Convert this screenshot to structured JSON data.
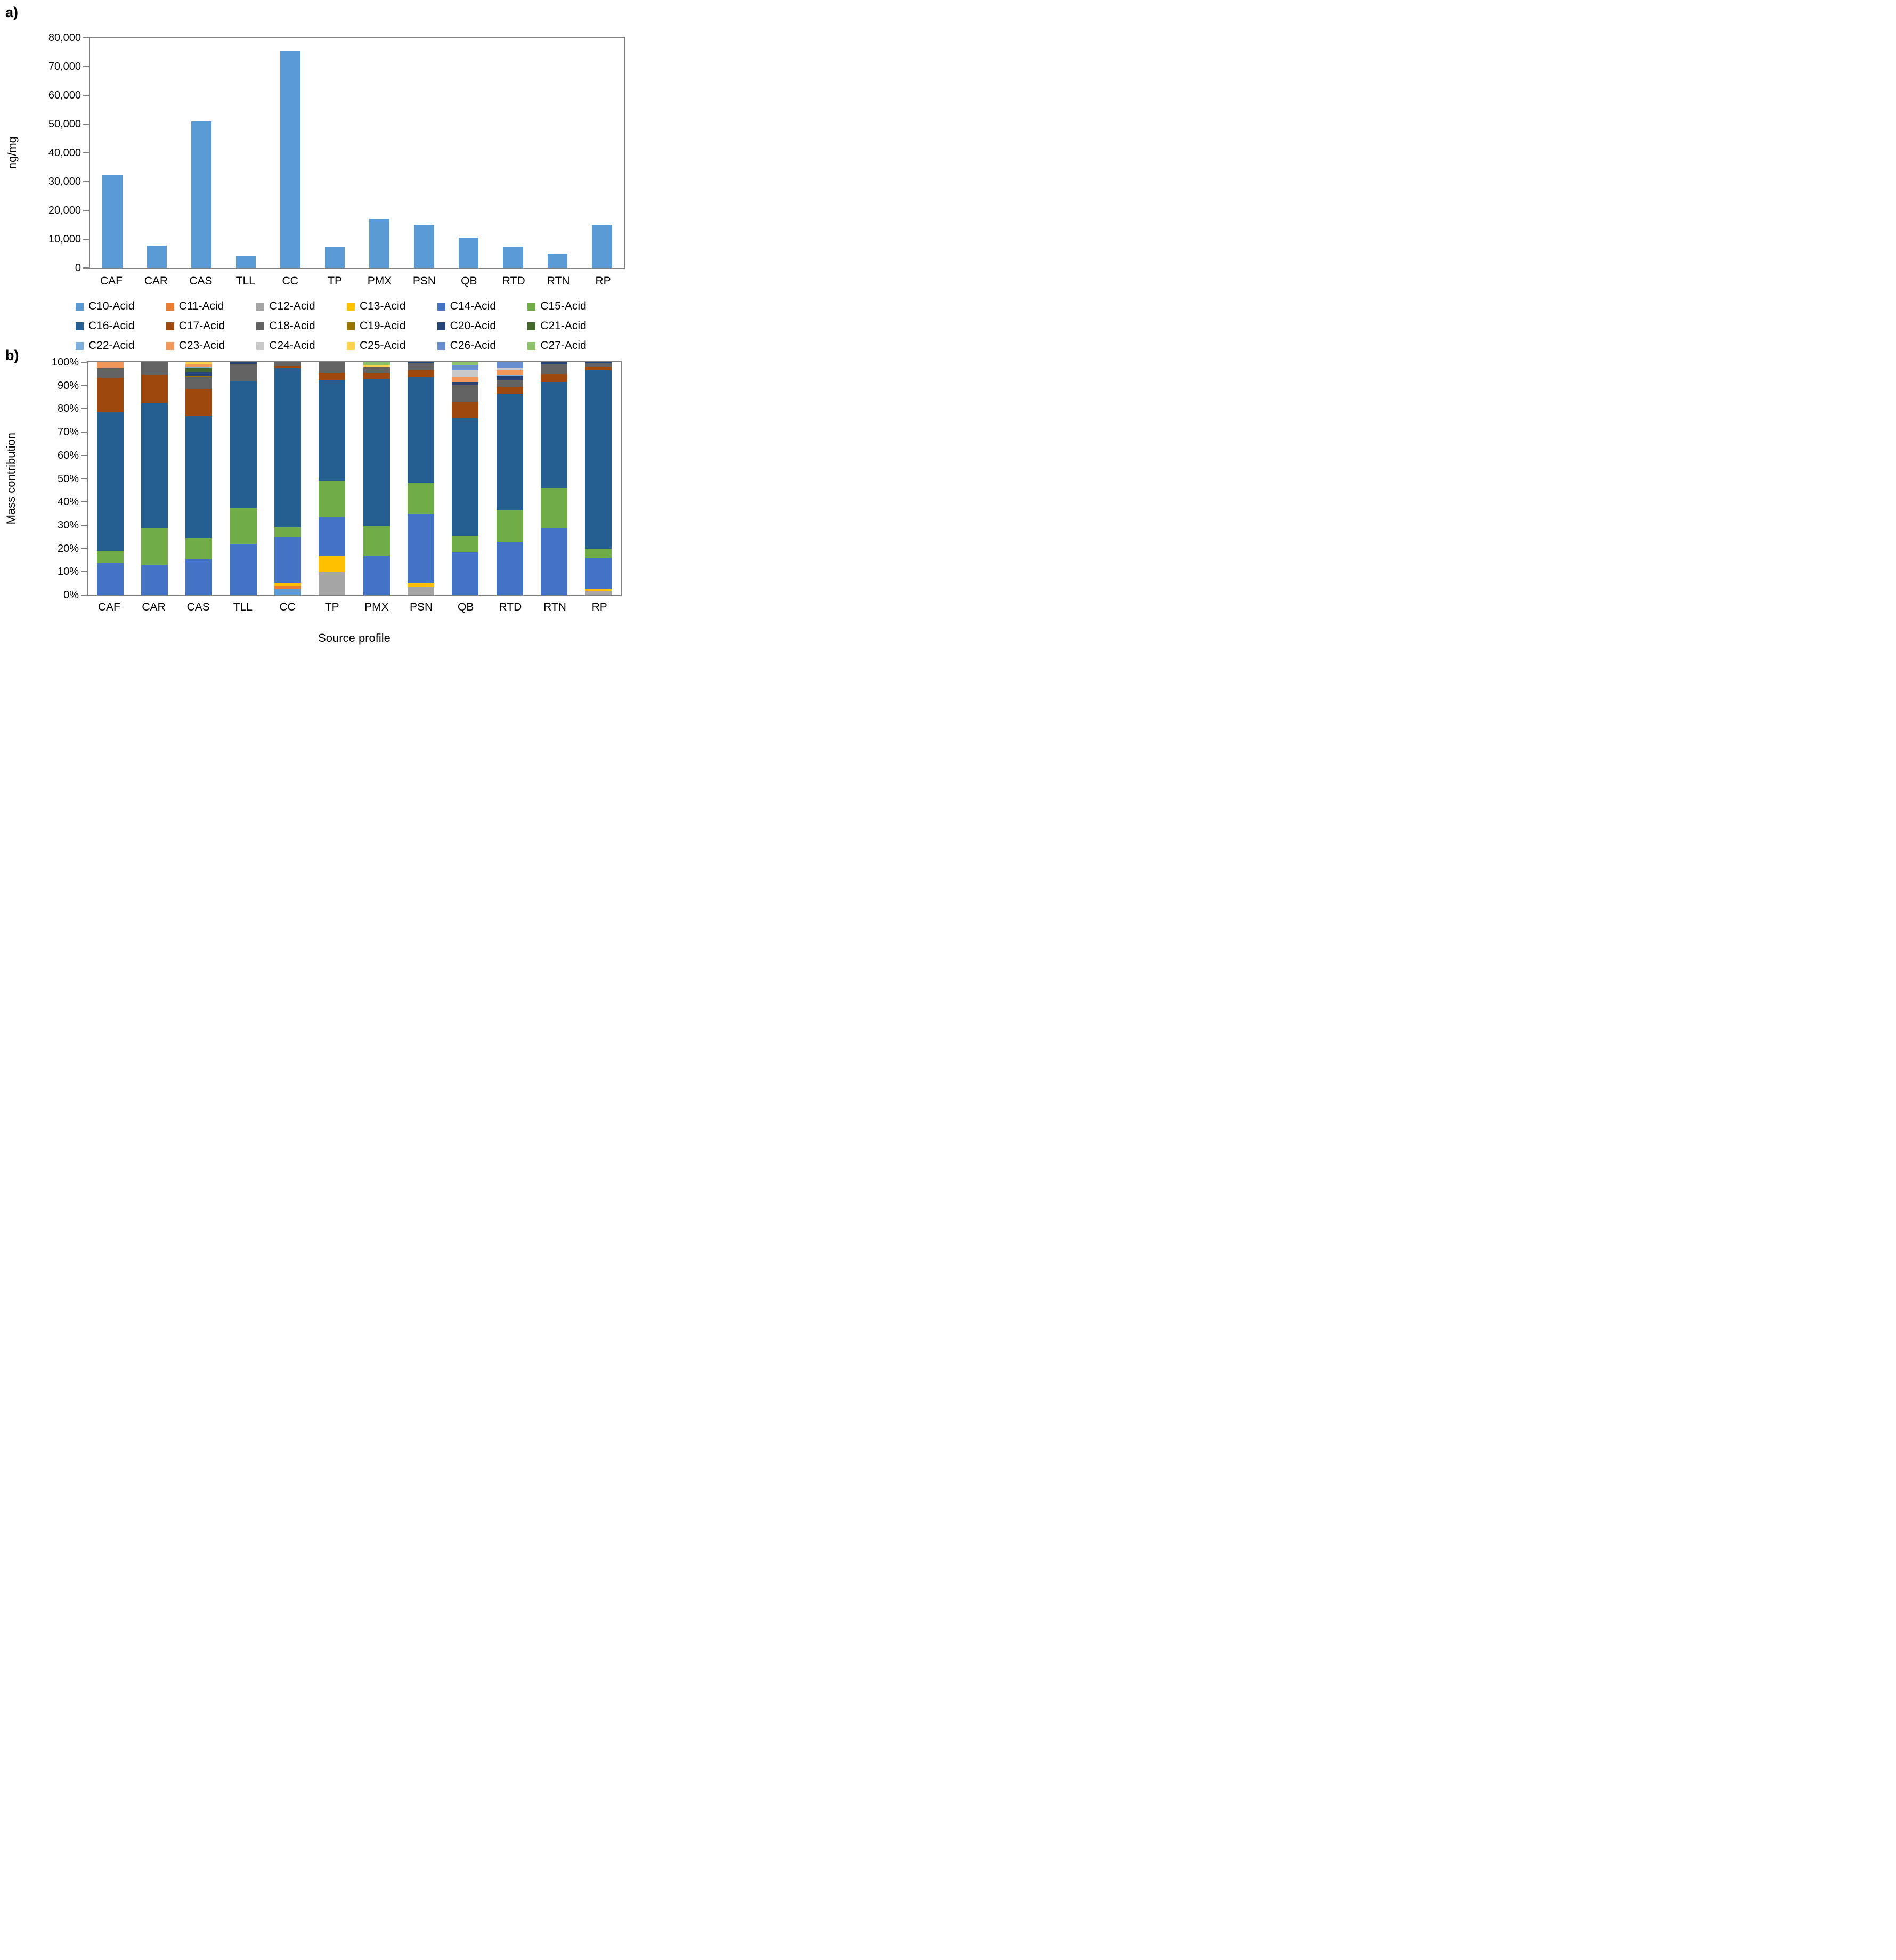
{
  "panel_a_label": "a)",
  "panel_b_label": "b)",
  "chart_data": [
    {
      "type": "bar",
      "panel": "a",
      "ylabel": "ng/mg",
      "categories": [
        "CAF",
        "CAR",
        "CAS",
        "TLL",
        "CC",
        "TP",
        "PMX",
        "PSN",
        "QB",
        "RTD",
        "RTN",
        "RP"
      ],
      "values": [
        32500,
        7700,
        51000,
        4300,
        75400,
        7300,
        17000,
        15000,
        10500,
        7500,
        5000,
        15000
      ],
      "ylim": [
        0,
        80000
      ],
      "ytick_step": 10000,
      "ytick_labels": [
        "0",
        "10,000",
        "20,000",
        "30,000",
        "40,000",
        "50,000",
        "60,000",
        "70,000",
        "80,000"
      ],
      "bar_color": "#5B9BD5",
      "grid": false,
      "legend_position": "none"
    },
    {
      "type": "stacked-bar-100",
      "panel": "b",
      "ylabel": "Mass contribution",
      "xlabel": "Source profile",
      "categories": [
        "CAF",
        "CAR",
        "CAS",
        "TLL",
        "CC",
        "TP",
        "PMX",
        "PSN",
        "QB",
        "RTD",
        "RTN",
        "RP"
      ],
      "ylim": [
        0,
        100
      ],
      "ytick_labels": [
        "0%",
        "10%",
        "20%",
        "30%",
        "40%",
        "50%",
        "60%",
        "70%",
        "80%",
        "90%",
        "100%"
      ],
      "grid": false,
      "legend_position": "top",
      "legend_columns": 6,
      "series": [
        {
          "name": "C10-Acid",
          "color": "#5B9BD5",
          "values": [
            0,
            0,
            0,
            0,
            2.6,
            0,
            0,
            0,
            0,
            0,
            0,
            0
          ]
        },
        {
          "name": "C11-Acid",
          "color": "#ED7D31",
          "values": [
            0,
            0,
            0,
            0,
            1.2,
            0,
            0,
            0,
            0,
            0,
            0,
            0
          ]
        },
        {
          "name": "C12-Acid",
          "color": "#A5A5A5",
          "values": [
            0,
            0,
            0,
            0,
            0,
            9.8,
            0,
            3.5,
            0,
            0,
            0,
            1.8
          ]
        },
        {
          "name": "C13-Acid",
          "color": "#FFC000",
          "values": [
            0,
            0,
            0,
            0,
            1.5,
            7,
            0,
            1.5,
            0,
            0,
            0,
            0.7
          ]
        },
        {
          "name": "C14-Acid",
          "color": "#4472C4",
          "values": [
            13.8,
            13,
            15.3,
            22,
            19.7,
            16.7,
            17,
            30,
            18.3,
            23,
            28.5,
            13.5
          ]
        },
        {
          "name": "C15-Acid",
          "color": "#70AD47",
          "values": [
            5.2,
            15.5,
            9.2,
            15.2,
            4,
            15.8,
            12.5,
            13,
            7,
            13.5,
            17.5,
            4
          ]
        },
        {
          "name": "C16-Acid",
          "color": "#255E91",
          "values": [
            59.5,
            54.2,
            52.5,
            54.5,
            68.5,
            43.2,
            63.5,
            45.5,
            50.7,
            50,
            45.5,
            76.5
          ]
        },
        {
          "name": "C17-Acid",
          "color": "#9E480E",
          "values": [
            14.8,
            12,
            11.5,
            0,
            1,
            3,
            2.4,
            3,
            7,
            3,
            3.5,
            1.5
          ]
        },
        {
          "name": "C18-Acid",
          "color": "#636363",
          "values": [
            4.2,
            5.3,
            5,
            7.6,
            1.5,
            4.5,
            2.6,
            3,
            7.5,
            3,
            4,
            1.5
          ]
        },
        {
          "name": "C19-Acid",
          "color": "#997300",
          "values": [
            0,
            0,
            0.5,
            0,
            0,
            0,
            0,
            0,
            0,
            0,
            0,
            0
          ]
        },
        {
          "name": "C20-Acid",
          "color": "#264478",
          "values": [
            0,
            0,
            1.7,
            0.7,
            0,
            0,
            0,
            0.5,
            1,
            1.5,
            1,
            0.5
          ]
        },
        {
          "name": "C21-Acid",
          "color": "#43682B",
          "values": [
            0,
            0,
            1.8,
            0,
            0,
            0,
            0,
            0,
            0,
            0,
            0,
            0
          ]
        },
        {
          "name": "C22-Acid",
          "color": "#7CAFDD",
          "values": [
            0,
            0,
            0.7,
            0,
            0,
            0,
            0,
            0,
            0,
            0.5,
            0,
            0
          ]
        },
        {
          "name": "C23-Acid",
          "color": "#F1975A",
          "values": [
            2.5,
            0,
            1,
            0,
            0,
            0,
            0,
            0,
            2,
            2,
            0,
            0
          ]
        },
        {
          "name": "C24-Acid",
          "color": "#C9C9C9",
          "values": [
            0,
            0,
            0,
            0,
            0,
            0,
            0,
            0,
            3,
            1,
            0,
            0
          ]
        },
        {
          "name": "C25-Acid",
          "color": "#FFD34D",
          "values": [
            0,
            0,
            0.8,
            0,
            0,
            0,
            0.8,
            0,
            0,
            0,
            0,
            0
          ]
        },
        {
          "name": "C26-Acid",
          "color": "#698ED0",
          "values": [
            0,
            0,
            0,
            0,
            0,
            0,
            0,
            0,
            2.3,
            2.5,
            0,
            0
          ]
        },
        {
          "name": "C27-Acid",
          "color": "#8CC168",
          "values": [
            0,
            0,
            0,
            0,
            0,
            0,
            1.2,
            0,
            1.2,
            0,
            0,
            0
          ]
        }
      ]
    }
  ]
}
